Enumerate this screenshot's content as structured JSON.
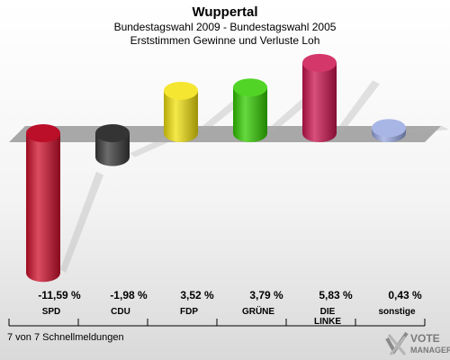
{
  "header": {
    "title": "Wuppertal",
    "subtitle_line1": "Bundestagswahl 2009 - Bundestagswahl 2005",
    "subtitle_line2": "Erststimmen Gewinne und Verluste Loh"
  },
  "footer": {
    "note": "7 von 7 Schnellmeldungen"
  },
  "logo": {
    "line1": "VOTE",
    "line2": "MANAGER"
  },
  "chart_data": {
    "type": "bar",
    "title": "Wuppertal",
    "subtitle": "Bundestagswahl 2009 - Bundestagswahl 2005 / Erststimmen Gewinne und Verluste Loh",
    "categories": [
      "SPD",
      "CDU",
      "FDP",
      "GRÜNE",
      "DIE LINKE",
      "sonstige"
    ],
    "category_lines": [
      [
        "SPD"
      ],
      [
        "CDU"
      ],
      [
        "FDP"
      ],
      [
        "GRÜNE"
      ],
      [
        "DIE",
        "LINKE"
      ],
      [
        "sonstige"
      ]
    ],
    "values": [
      -11.59,
      -1.98,
      3.52,
      3.79,
      5.83,
      0.43
    ],
    "value_labels": [
      "-11,59 %",
      "-1,98 %",
      "3,52 %",
      "3,79 %",
      "5,83 %",
      "0,43 %"
    ],
    "colors": [
      "#d0102c",
      "#3a3a3a",
      "#f2e10d",
      "#33cc00",
      "#cc1450",
      "#99a9e2"
    ],
    "xlabel": "",
    "ylabel": "",
    "grid": false
  }
}
